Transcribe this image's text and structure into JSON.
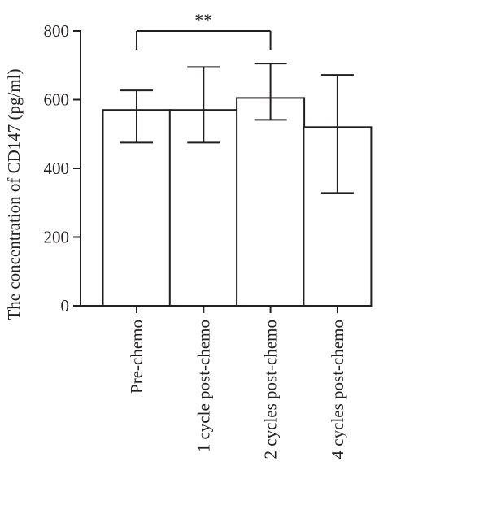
{
  "chart_data": {
    "type": "bar",
    "title": "",
    "xlabel": "",
    "ylabel": "The concentration of CD147 (pg/ml)",
    "ylim": [
      0,
      800
    ],
    "yticks": [
      0,
      200,
      400,
      600,
      800
    ],
    "categories": [
      "Pre-chemo",
      "1 cycle post-chemo",
      "2 cycles post-chemo",
      "4 cycles post-chemo"
    ],
    "values": [
      570,
      570,
      605,
      520
    ],
    "error_high": [
      627,
      695,
      705,
      672
    ],
    "error_low": [
      475,
      475,
      541,
      328
    ],
    "significance": {
      "from": 0,
      "to": 2,
      "label": "**",
      "y": 800
    },
    "grid": false,
    "legend": "none"
  }
}
